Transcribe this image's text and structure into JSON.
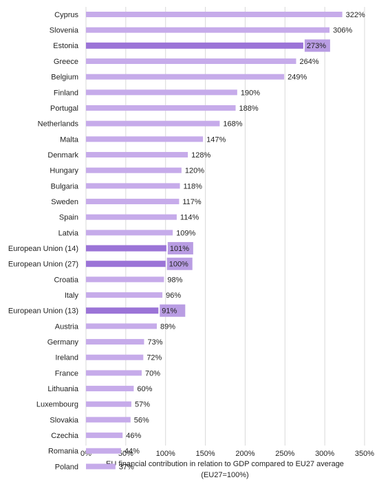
{
  "chart_data": {
    "type": "hbar",
    "categories": [
      "Cyprus",
      "Slovenia",
      "Estonia",
      "Greece",
      "Belgium",
      "Finland",
      "Portugal",
      "Netherlands",
      "Malta",
      "Denmark",
      "Hungary",
      "Bulgaria",
      "Sweden",
      "Spain",
      "Latvia",
      "European Union (14)",
      "European Union (27)",
      "Croatia",
      "Italy",
      "European Union (13)",
      "Austria",
      "Germany",
      "Ireland",
      "France",
      "Lithuania",
      "Luxembourg",
      "Slovakia",
      "Czechia",
      "Romania",
      "Poland"
    ],
    "values": [
      322,
      306,
      273,
      264,
      249,
      190,
      188,
      168,
      147,
      128,
      120,
      118,
      117,
      114,
      109,
      101,
      100,
      98,
      96,
      91,
      89,
      73,
      72,
      70,
      60,
      57,
      56,
      46,
      44,
      37
    ],
    "value_labels": [
      "322%",
      "306%",
      "273%",
      "264%",
      "249%",
      "190%",
      "188%",
      "168%",
      "147%",
      "128%",
      "120%",
      "118%",
      "117%",
      "114%",
      "109%",
      "101%",
      "100%",
      "98%",
      "96%",
      "91%",
      "89%",
      "73%",
      "72%",
      "70%",
      "60%",
      "57%",
      "56%",
      "46%",
      "44%",
      "37%"
    ],
    "color": "#c6abea",
    "colors": [
      "#c6abea",
      "#c6abea",
      "#9b74d7",
      "#c6abea",
      "#c6abea",
      "#c6abea",
      "#c6abea",
      "#c6abea",
      "#c6abea",
      "#c6abea",
      "#c6abea",
      "#c6abea",
      "#c6abea",
      "#c6abea",
      "#c6abea",
      "#9b74d7",
      "#9b74d7",
      "#c6abea",
      "#c6abea",
      "#9b74d7",
      "#c6abea",
      "#c6abea",
      "#c6abea",
      "#c6abea",
      "#c6abea",
      "#c6abea",
      "#c6abea",
      "#c6abea",
      "#c6abea",
      "#c6abea"
    ],
    "label_box_color": "#b99de3",
    "xlim": [
      0,
      350
    ],
    "xticks": [
      {
        "value": 0,
        "label": "0%"
      },
      {
        "value": 50,
        "label": "50%"
      },
      {
        "value": 100,
        "label": "100%"
      },
      {
        "value": 150,
        "label": "150%"
      },
      {
        "value": 200,
        "label": "200%"
      },
      {
        "value": 250,
        "label": "250%"
      },
      {
        "value": 300,
        "label": "300%"
      },
      {
        "value": 350,
        "label": "350%"
      }
    ],
    "grid": true,
    "x_label": [
      "EU financial contribution in relation to GDP compared to EU27 average",
      "(EU27=100%)"
    ]
  }
}
